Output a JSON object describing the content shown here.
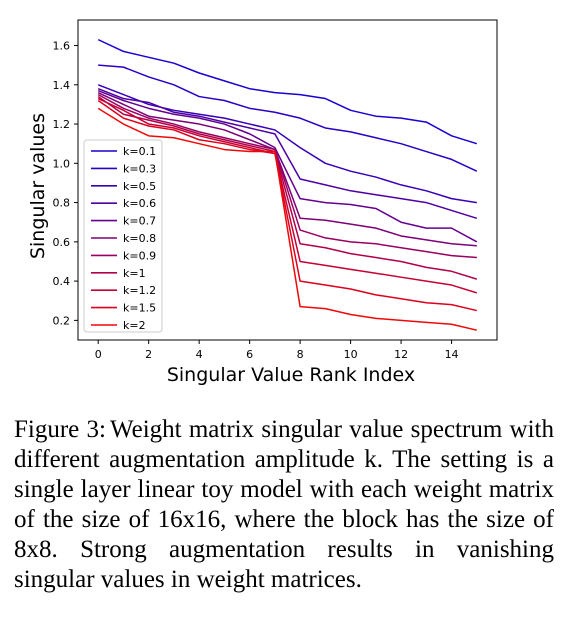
{
  "chart_data": {
    "type": "line",
    "xlabel": "Singular Value Rank Index",
    "ylabel": "Singular values",
    "xlim": [
      -0.8,
      15.8
    ],
    "ylim": [
      0.1,
      1.73
    ],
    "xticks": [
      0,
      2,
      4,
      6,
      8,
      10,
      12,
      14
    ],
    "yticks": [
      0.2,
      0.4,
      0.6,
      0.8,
      1.0,
      1.2,
      1.4,
      1.6
    ],
    "ytick_labels": [
      "0.2",
      "0.4",
      "0.6",
      "0.8",
      "1.0",
      "1.2",
      "1.4",
      "1.6"
    ],
    "grid": false,
    "legend_position": "left-bottom",
    "x": [
      0,
      1,
      2,
      3,
      4,
      5,
      6,
      7,
      8,
      9,
      10,
      11,
      12,
      13,
      14,
      15
    ],
    "series": [
      {
        "name": "k=0.1",
        "color": "#1a00d2",
        "values": [
          1.63,
          1.57,
          1.54,
          1.51,
          1.46,
          1.42,
          1.38,
          1.36,
          1.35,
          1.33,
          1.27,
          1.24,
          1.23,
          1.21,
          1.14,
          1.1
        ]
      },
      {
        "name": "k=0.3",
        "color": "#2800c6",
        "values": [
          1.5,
          1.49,
          1.44,
          1.4,
          1.34,
          1.32,
          1.28,
          1.26,
          1.23,
          1.18,
          1.16,
          1.13,
          1.1,
          1.06,
          1.02,
          0.96
        ]
      },
      {
        "name": "k=0.5",
        "color": "#3600b8",
        "values": [
          1.4,
          1.35,
          1.3,
          1.27,
          1.25,
          1.23,
          1.2,
          1.17,
          1.08,
          1.0,
          0.96,
          0.93,
          0.89,
          0.86,
          0.82,
          0.8
        ]
      },
      {
        "name": "k=0.6",
        "color": "#4e00a4",
        "values": [
          1.38,
          1.33,
          1.31,
          1.26,
          1.24,
          1.21,
          1.18,
          1.15,
          0.92,
          0.89,
          0.86,
          0.84,
          0.82,
          0.8,
          0.76,
          0.72
        ]
      },
      {
        "name": "k=0.7",
        "color": "#63008f",
        "values": [
          1.37,
          1.32,
          1.28,
          1.25,
          1.23,
          1.2,
          1.15,
          1.08,
          0.82,
          0.8,
          0.79,
          0.77,
          0.7,
          0.67,
          0.67,
          0.6
        ]
      },
      {
        "name": "k=0.8",
        "color": "#7d0078",
        "values": [
          1.36,
          1.3,
          1.24,
          1.22,
          1.2,
          1.17,
          1.12,
          1.07,
          0.72,
          0.71,
          0.69,
          0.67,
          0.63,
          0.61,
          0.59,
          0.58
        ]
      },
      {
        "name": "k=0.9",
        "color": "#990062",
        "values": [
          1.35,
          1.28,
          1.23,
          1.2,
          1.16,
          1.13,
          1.1,
          1.07,
          0.66,
          0.62,
          0.6,
          0.59,
          0.57,
          0.55,
          0.53,
          0.52
        ]
      },
      {
        "name": "k=1",
        "color": "#b1004a",
        "values": [
          1.34,
          1.25,
          1.22,
          1.19,
          1.15,
          1.12,
          1.09,
          1.06,
          0.59,
          0.57,
          0.54,
          0.52,
          0.5,
          0.47,
          0.45,
          0.41
        ]
      },
      {
        "name": "k=1.2",
        "color": "#c70034",
        "values": [
          1.33,
          1.27,
          1.2,
          1.18,
          1.14,
          1.11,
          1.08,
          1.05,
          0.5,
          0.48,
          0.46,
          0.44,
          0.42,
          0.4,
          0.38,
          0.34
        ]
      },
      {
        "name": "k=1.5",
        "color": "#dd001e",
        "values": [
          1.32,
          1.23,
          1.19,
          1.17,
          1.12,
          1.1,
          1.07,
          1.05,
          0.4,
          0.38,
          0.36,
          0.33,
          0.31,
          0.29,
          0.28,
          0.25
        ]
      },
      {
        "name": "k=2",
        "color": "#f00808",
        "values": [
          1.28,
          1.2,
          1.14,
          1.13,
          1.1,
          1.07,
          1.06,
          1.06,
          0.27,
          0.26,
          0.23,
          0.21,
          0.2,
          0.19,
          0.18,
          0.15
        ]
      }
    ]
  },
  "caption": {
    "lead": "Figure 3:",
    "text": "Weight matrix singular value spectrum with different augmentation amplitude k. The setting is a single layer linear toy model with each weight matrix of the size of 16x16, where the block has the size of 8x8. Strong augmentation results in vanishing singular values in weight matrices."
  }
}
